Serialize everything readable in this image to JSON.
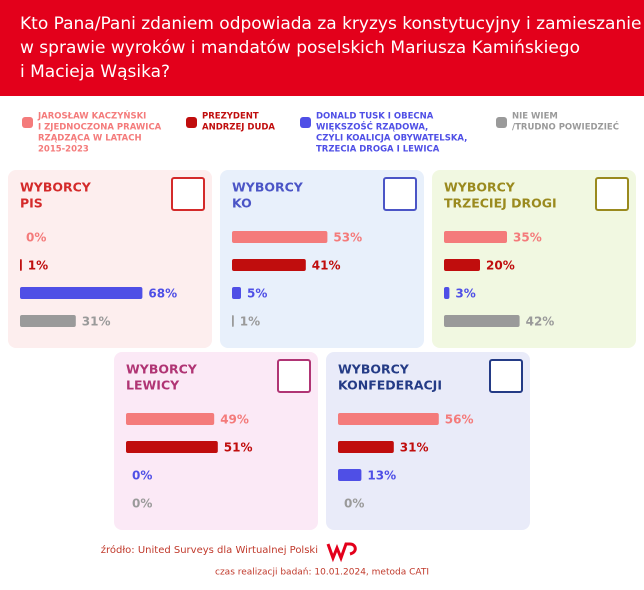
{
  "title": [
    "Kto Pana/Pani zdaniem odpowiada za kryzys konstytucyjny i zamieszanie",
    "w sprawie wyroków i mandatów poselskich Mariusza Kamińskiego",
    "i Macieja Wąsika?"
  ],
  "legend": [
    {
      "name": [
        "JAROSŁAW KACZYŃSKI",
        "I ZJEDNOCZONA PRAWICA",
        "RZĄDZĄCA W LATACH",
        "2015-2023"
      ],
      "color": "#f47b7b"
    },
    {
      "name": [
        "PREZYDENT",
        "ANDRZEJ DUDA"
      ],
      "color": "#c00d0d"
    },
    {
      "name": [
        "DONALD TUSK I OBECNA",
        "WIĘKSZOŚĆ RZĄDOWA,",
        "CZYLI KOALICJA OBYWATELSKA,",
        "TRZECIA DROGA I LEWICA"
      ],
      "color": "#4f4fe6"
    },
    {
      "name": [
        "NIE WIEM",
        "/TRUDNO POWIEDZIEĆ"
      ],
      "color": "#9a9a9a"
    }
  ],
  "chart_data": [
    {
      "type": "bar",
      "title": [
        "WYBORCY",
        "PIS"
      ],
      "values": [
        0,
        1,
        68,
        31
      ],
      "value_labels": [
        "0%",
        "1%",
        "68%",
        "31%"
      ]
    },
    {
      "type": "bar",
      "title": [
        "WYBORCY",
        "KO"
      ],
      "values": [
        53,
        41,
        5,
        1
      ],
      "value_labels": [
        "53%",
        "41%",
        "5%",
        "1%"
      ]
    },
    {
      "type": "bar",
      "title": [
        "WYBORCY",
        "TRZECIEJ DROGI"
      ],
      "values": [
        35,
        20,
        3,
        42
      ],
      "value_labels": [
        "35%",
        "20%",
        "3%",
        "42%"
      ]
    },
    {
      "type": "bar",
      "title": [
        "WYBORCY",
        "LEWICY"
      ],
      "values": [
        49,
        51,
        0,
        0
      ],
      "value_labels": [
        "49%",
        "51%",
        "0%",
        "0%"
      ]
    },
    {
      "type": "bar",
      "title": [
        "WYBORCY",
        "KONFEDERACJI"
      ],
      "values": [
        56,
        31,
        13,
        0
      ],
      "value_labels": [
        "56%",
        "31%",
        "13%",
        "0%"
      ]
    }
  ],
  "source": "źródło: United Surveys dla Wirtualnej Polski",
  "note": "czas realizacji badań: 10.01.2024, metoda CATI"
}
